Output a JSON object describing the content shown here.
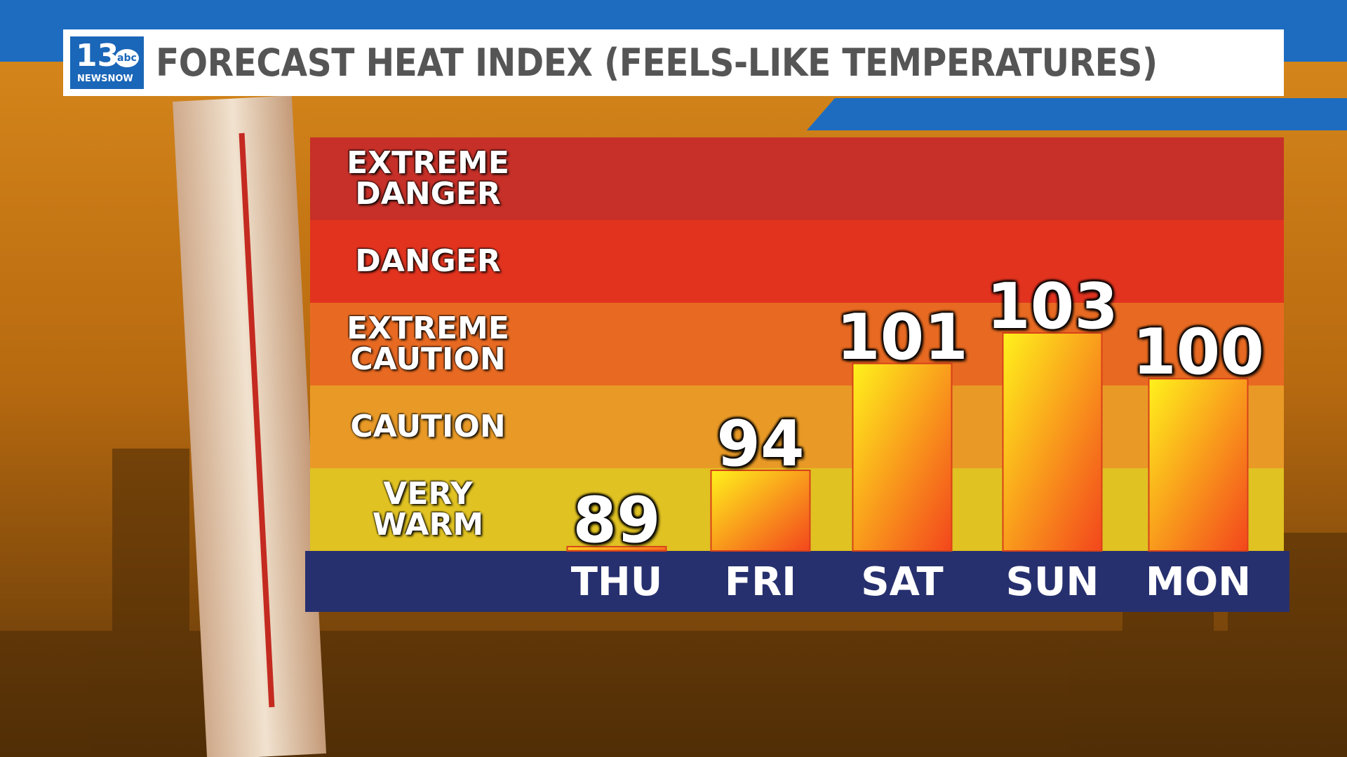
{
  "header": {
    "logo_number": "13",
    "logo_network": "abc",
    "logo_brand": "NEWSNOW"
  },
  "chart_data": {
    "type": "bar",
    "title": "FORECAST HEAT INDEX (FEELS-LIKE TEMPERATURES)",
    "categories": [
      "THU",
      "FRI",
      "SAT",
      "SUN",
      "MON"
    ],
    "values": [
      89,
      94,
      101,
      103,
      100
    ],
    "bar_gradient": [
      "#fff21c",
      "#f3461c"
    ],
    "bands": [
      {
        "label": "EXTREME DANGER",
        "color": "#c63028"
      },
      {
        "label": "DANGER",
        "color": "#e2331f"
      },
      {
        "label": "EXTREME CAUTION",
        "color": "#e86a22"
      },
      {
        "label": "CAUTION",
        "color": "#e99a26"
      },
      {
        "label": "VERY WARM",
        "color": "#e0c222"
      }
    ]
  }
}
